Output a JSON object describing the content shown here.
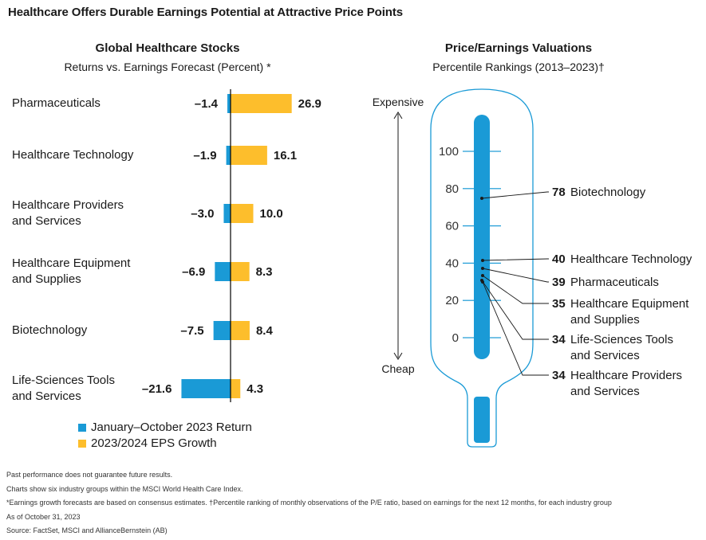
{
  "main_title": "Healthcare Offers Durable Earnings Potential at Attractive Price Points",
  "colors": {
    "return": "#1a9ad6",
    "eps": "#fdbe2c",
    "thermo_outline": "#1a9ad6",
    "thermo_fill": "#1a9ad6"
  },
  "chart_data": [
    {
      "type": "bar",
      "orientation": "horizontal",
      "title": "Global Healthcare Stocks",
      "subtitle": "Returns vs. Earnings Forecast (Percent) *",
      "categories": [
        "Pharmaceuticals",
        "Healthcare Technology",
        "Healthcare Providers\nand Services",
        "Healthcare Equipment\nand Supplies",
        "Biotechnology",
        "Life-Sciences Tools\nand Services"
      ],
      "series": [
        {
          "name": "January–October 2023 Return",
          "values": [
            -1.4,
            -1.9,
            -3.0,
            -6.9,
            -7.5,
            -21.6
          ]
        },
        {
          "name": "2023/2024 EPS Growth",
          "values": [
            26.9,
            16.1,
            10.0,
            8.3,
            8.4,
            4.3
          ]
        }
      ],
      "value_labels_return": [
        "–1.4",
        "–1.9",
        "–3.0",
        "–6.9",
        "–7.5",
        "–21.6"
      ],
      "value_labels_eps": [
        "26.9",
        "16.1",
        "10.0",
        "8.3",
        "8.4",
        "4.3"
      ],
      "legend_position": "bottom"
    },
    {
      "type": "thermometer",
      "title": "Price/Earnings Valuations",
      "subtitle": "Percentile Rankings (2013–2023)†",
      "axis_top_label": "Expensive",
      "axis_bottom_label": "Cheap",
      "ticks": [
        "100",
        "80",
        "60",
        "40",
        "20",
        "0"
      ],
      "ylim": [
        0,
        100
      ],
      "points": [
        {
          "value": 78,
          "value_label": "78",
          "label": "Biotechnology"
        },
        {
          "value": 40,
          "value_label": "40",
          "label": "Healthcare Technology"
        },
        {
          "value": 39,
          "value_label": "39",
          "label": "Pharmaceuticals"
        },
        {
          "value": 35,
          "value_label": "35",
          "label": "Healthcare Equipment\nand Supplies"
        },
        {
          "value": 34,
          "value_label": "34",
          "label": "Life-Sciences Tools\nand Services"
        },
        {
          "value": 34,
          "value_label": "34",
          "label": "Healthcare Providers\nand Services"
        }
      ]
    }
  ],
  "notes": [
    "Past performance does not guarantee future results.",
    "Charts show six industry groups within the MSCI World Health Care Index.",
    "*Earnings growth forecasts are based on consensus estimates. †Percentile ranking of monthly observations of the P/E ratio, based on earnings for the next 12 months, for each industry group",
    "As of October 31, 2023",
    "Source: FactSet, MSCI and AllianceBernstein (AB)"
  ]
}
